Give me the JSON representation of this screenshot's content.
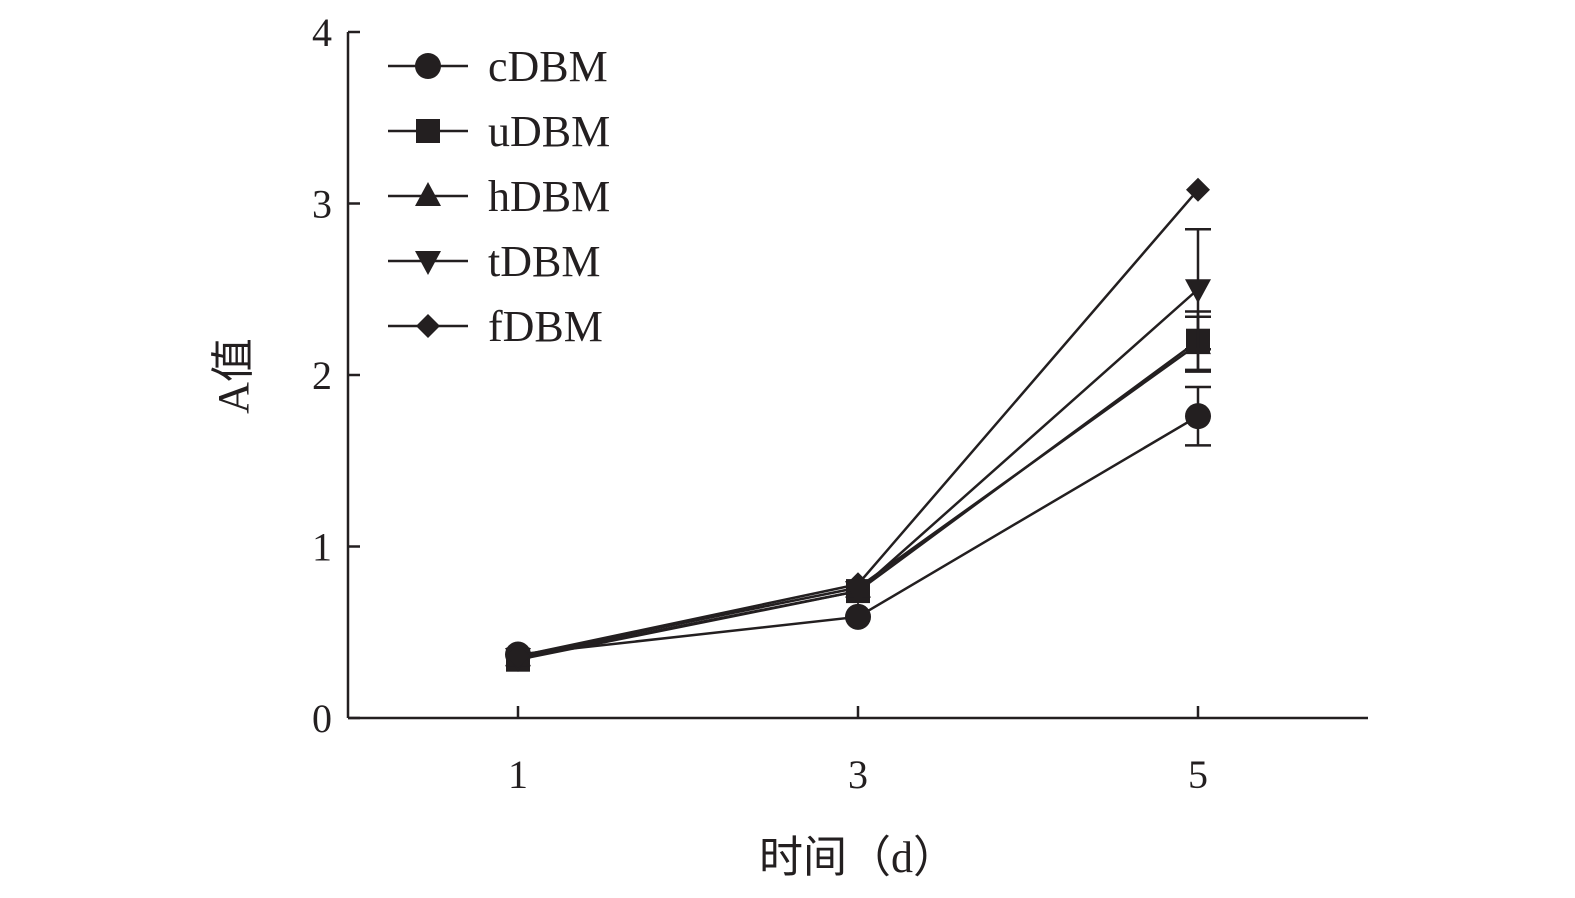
{
  "chart_data": {
    "type": "line",
    "title": "",
    "xlabel": "时间（d）",
    "ylabel": "A值",
    "x": [
      1,
      3,
      5
    ],
    "xticks": [
      "1",
      "3",
      "5"
    ],
    "yticks": [
      "0",
      "1",
      "2",
      "3",
      "4"
    ],
    "ylim": [
      0,
      4
    ],
    "xlim": [
      0,
      6
    ],
    "grid": false,
    "legend_position": "top-left",
    "color": "#231f20",
    "series": [
      {
        "name": "cDBM",
        "marker": "circle",
        "values": [
          0.37,
          0.59,
          1.76
        ],
        "error": [
          0,
          0,
          0.17
        ]
      },
      {
        "name": "uDBM",
        "marker": "square",
        "values": [
          0.34,
          0.74,
          2.2
        ],
        "error": [
          0,
          0,
          0.17
        ]
      },
      {
        "name": "hDBM",
        "marker": "triangle-up",
        "values": [
          0.36,
          0.76,
          2.18
        ],
        "error": [
          0,
          0,
          0.16
        ]
      },
      {
        "name": "tDBM",
        "marker": "triangle-down",
        "values": [
          0.35,
          0.74,
          2.5
        ],
        "error": [
          0,
          0,
          0.35
        ]
      },
      {
        "name": "fDBM",
        "marker": "diamond",
        "values": [
          0.36,
          0.78,
          3.08
        ],
        "error": [
          0,
          0,
          0
        ]
      }
    ]
  }
}
